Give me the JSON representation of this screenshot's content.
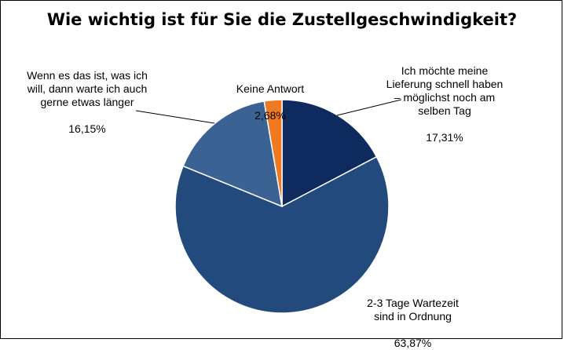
{
  "chart_data": {
    "type": "pie",
    "title": "Wie wichtig ist für Sie die Zustellgeschwindigkeit?",
    "slices": [
      {
        "label": "Ich möchte meine Lieferung schnell haben – möglichst noch am selben Tag",
        "value": 17.31,
        "value_label": "17,31%",
        "color": "#0f2a5e"
      },
      {
        "label": "2-3 Tage Wartezeit sind in Ordnung",
        "value": 63.87,
        "value_label": "63,87%",
        "color": "#234a7d"
      },
      {
        "label": "Wenn es das ist, was ich will, dann warte ich auch gerne etwas länger",
        "value": 16.15,
        "value_label": "16,15%",
        "color": "#3a6394"
      },
      {
        "label": "Keine Antwort",
        "value": 2.68,
        "value_label": "2,68%",
        "color": "#f07a22"
      }
    ],
    "start_angle": "12 o'clock",
    "direction": "clockwise",
    "legend": "none"
  }
}
